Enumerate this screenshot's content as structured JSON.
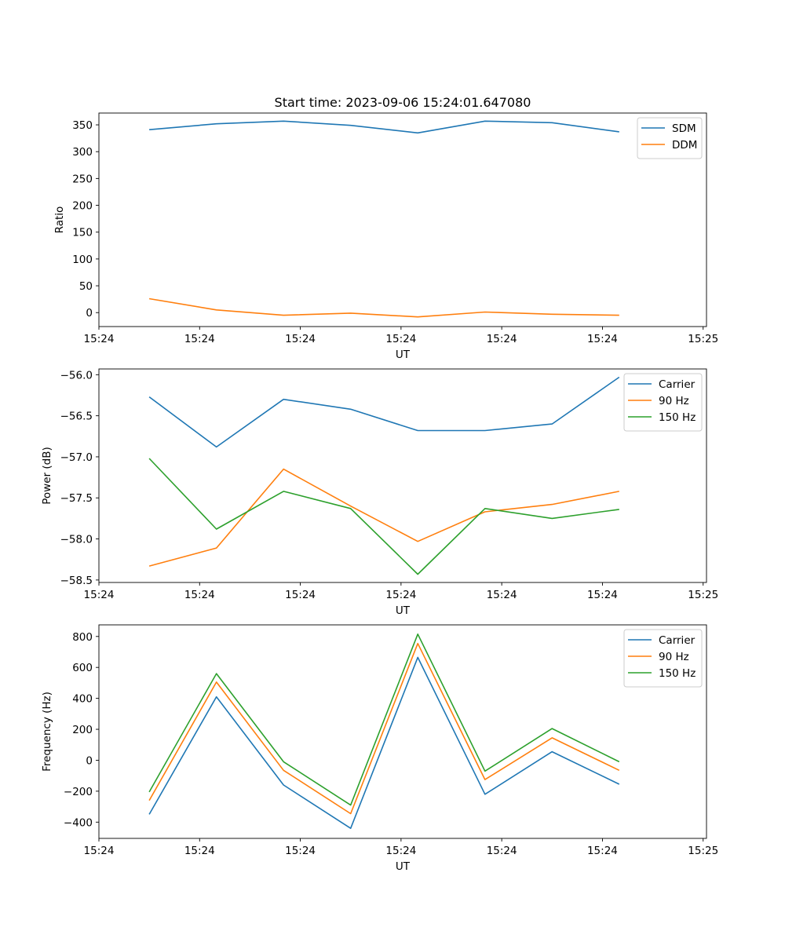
{
  "chart_data": [
    {
      "type": "line",
      "title": "Start time: 2023-09-06 15:24:01.647080",
      "xlabel": "UT",
      "ylabel": "Ratio",
      "xlim": [
        -0.75,
        8.3
      ],
      "ylim": [
        -26,
        372
      ],
      "x_tick_positions": [
        -0.75,
        0.75,
        2.25,
        3.75,
        5.25,
        6.75,
        8.25
      ],
      "x_tick_labels": [
        "15:24",
        "15:24",
        "15:24",
        "15:24",
        "15:24",
        "15:24",
        "15:25"
      ],
      "y_ticks": [
        0,
        50,
        100,
        150,
        200,
        250,
        300,
        350
      ],
      "y_tick_labels": [
        "0",
        "50",
        "100",
        "150",
        "200",
        "250",
        "300",
        "350"
      ],
      "x": [
        0,
        1,
        2,
        3,
        4,
        5,
        6,
        7
      ],
      "legend_loc": "upper-right",
      "series": [
        {
          "name": "SDM",
          "color": "#1f77b4",
          "values": [
            341,
            352,
            357,
            349,
            335,
            357,
            354,
            337
          ]
        },
        {
          "name": "DDM",
          "color": "#ff7f0e",
          "values": [
            26,
            5,
            -5,
            -1,
            -8,
            1,
            -3,
            -5
          ]
        }
      ]
    },
    {
      "type": "line",
      "title": "",
      "xlabel": "UT",
      "ylabel": "Power (dB)",
      "xlim": [
        -0.75,
        8.3
      ],
      "ylim": [
        -58.53,
        -55.93
      ],
      "x_tick_positions": [
        -0.75,
        0.75,
        2.25,
        3.75,
        5.25,
        6.75,
        8.25
      ],
      "x_tick_labels": [
        "15:24",
        "15:24",
        "15:24",
        "15:24",
        "15:24",
        "15:24",
        "15:25"
      ],
      "y_ticks": [
        -58.5,
        -58.0,
        -57.5,
        -57.0,
        -56.5,
        -56.0
      ],
      "y_tick_labels": [
        "−58.5",
        "−58.0",
        "−57.5",
        "−57.0",
        "−56.5",
        "−56.0"
      ],
      "x": [
        0,
        1,
        2,
        3,
        4,
        5,
        6,
        7
      ],
      "legend_loc": "upper-right",
      "series": [
        {
          "name": "Carrier",
          "color": "#1f77b4",
          "values": [
            -56.27,
            -56.88,
            -56.3,
            -56.42,
            -56.68,
            -56.68,
            -56.6,
            -56.03
          ]
        },
        {
          "name": "90 Hz",
          "color": "#ff7f0e",
          "values": [
            -58.33,
            -58.11,
            -57.15,
            -57.6,
            -58.03,
            -57.67,
            -57.58,
            -57.42
          ]
        },
        {
          "name": "150 Hz",
          "color": "#2ca02c",
          "values": [
            -57.02,
            -57.88,
            -57.42,
            -57.63,
            -58.43,
            -57.63,
            -57.75,
            -57.64
          ]
        }
      ]
    },
    {
      "type": "line",
      "title": "",
      "xlabel": "UT",
      "ylabel": "Frequency (Hz)",
      "xlim": [
        -0.75,
        8.3
      ],
      "ylim": [
        -505,
        875
      ],
      "x_tick_positions": [
        -0.75,
        0.75,
        2.25,
        3.75,
        5.25,
        6.75,
        8.25
      ],
      "x_tick_labels": [
        "15:24",
        "15:24",
        "15:24",
        "15:24",
        "15:24",
        "15:24",
        "15:25"
      ],
      "y_ticks": [
        -400,
        -200,
        0,
        200,
        400,
        600,
        800
      ],
      "y_tick_labels": [
        "−400",
        "−200",
        "0",
        "200",
        "400",
        "600",
        "800"
      ],
      "x": [
        0,
        1,
        2,
        3,
        4,
        5,
        6,
        7
      ],
      "legend_loc": "upper-right",
      "series": [
        {
          "name": "Carrier",
          "color": "#1f77b4",
          "values": [
            -350,
            410,
            -160,
            -440,
            665,
            -220,
            55,
            -155
          ]
        },
        {
          "name": "90 Hz",
          "color": "#ff7f0e",
          "values": [
            -260,
            505,
            -65,
            -345,
            755,
            -125,
            145,
            -65
          ]
        },
        {
          "name": "150 Hz",
          "color": "#2ca02c",
          "values": [
            -205,
            560,
            -10,
            -290,
            815,
            -70,
            205,
            -10
          ]
        }
      ]
    }
  ]
}
